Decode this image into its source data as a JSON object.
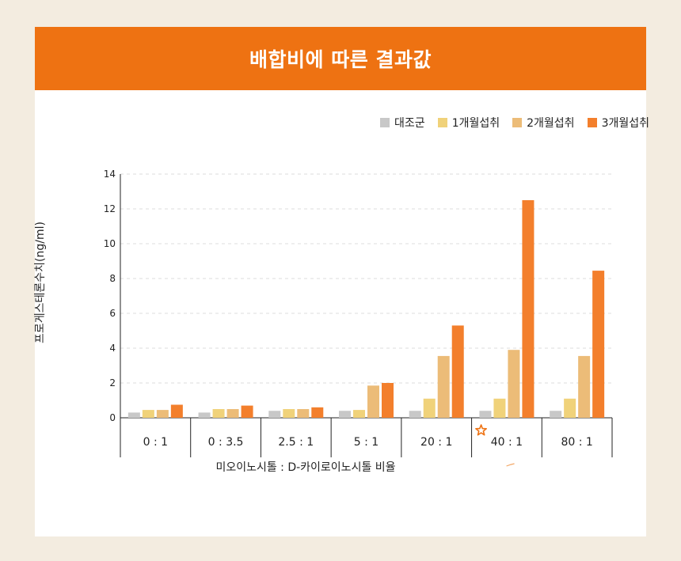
{
  "header": {
    "title": "배합비에 따른 결과값"
  },
  "chart_data": {
    "type": "bar",
    "title": "배합비에 따른 결과값",
    "xlabel": "미오이노시톨 : D-카이로이노시톨 비율",
    "ylabel": "프로게스테론수치(ng/ml)",
    "ylim": [
      0,
      14
    ],
    "yticks": [
      "0",
      "2",
      "4",
      "6",
      "8",
      "10",
      "12",
      "14"
    ],
    "grid": true,
    "legend_position": "top-right",
    "categories": [
      "0 : 1",
      "0 : 3.5",
      "2.5 : 1",
      "5 : 1",
      "20 : 1",
      "40 : 1",
      "80 : 1"
    ],
    "series": [
      {
        "name": "대조군",
        "color": "#c8c8c8",
        "values": [
          0.3,
          0.3,
          0.4,
          0.4,
          0.4,
          0.4,
          0.4
        ]
      },
      {
        "name": "1개월섭취",
        "color": "#f0d27a",
        "values": [
          0.45,
          0.5,
          0.5,
          0.45,
          1.1,
          1.1,
          1.1
        ]
      },
      {
        "name": "2개월섭취",
        "color": "#ecbc78",
        "values": [
          0.45,
          0.5,
          0.5,
          1.85,
          3.55,
          3.9,
          3.55
        ]
      },
      {
        "name": "3개월섭취",
        "color": "#f37f2c",
        "values": [
          0.75,
          0.7,
          0.6,
          2.0,
          5.3,
          12.5,
          8.45
        ]
      }
    ],
    "highlight_category": "40 : 1",
    "highlight_icon": "star-icon"
  }
}
